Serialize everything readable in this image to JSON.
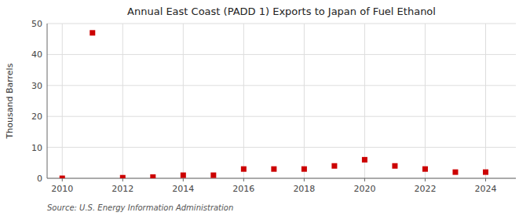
{
  "chart_data": {
    "type": "scatter",
    "title": "Annual East Coast (PADD 1) Exports to Japan of Fuel Ethanol",
    "ylabel": "Thousand Barrels",
    "source": "Source: U.S. Energy Information Administration",
    "color": "#cc0000",
    "marker": "square",
    "grid": true,
    "xlim": [
      2009.5,
      2025.0
    ],
    "ylim": [
      0,
      50
    ],
    "yticks": [
      0,
      10,
      20,
      30,
      40,
      50
    ],
    "xticks": [
      2010,
      2012,
      2014,
      2016,
      2018,
      2020,
      2022,
      2024
    ],
    "x": [
      2010,
      2011,
      2012,
      2013,
      2014,
      2015,
      2016,
      2017,
      2018,
      2019,
      2020,
      2021,
      2022,
      2023,
      2024
    ],
    "values": [
      0.0,
      47.0,
      0.2,
      0.4,
      1.0,
      1.0,
      3.0,
      3.0,
      3.0,
      4.0,
      6.0,
      4.0,
      3.0,
      2.0,
      2.0
    ]
  }
}
